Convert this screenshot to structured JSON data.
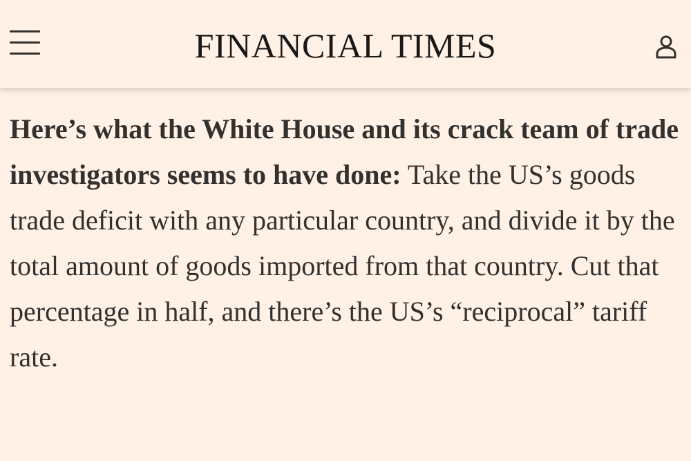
{
  "header": {
    "brand": "FINANCIAL TIMES",
    "menu_icon": "hamburger-menu-icon",
    "account_icon": "user-account-icon"
  },
  "article": {
    "bold_text": "Here’s what the White House and its crack team of trade investigators seems to have done:",
    "body_text": " Take the US’s goods trade deficit with any particular country, and divide it by the total amount of goods imported from that country. Cut that percentage in half, and there’s the US’s “reciprocal” tariff rate."
  },
  "colors": {
    "background": "#FFF1E5",
    "text": "#33302E"
  }
}
